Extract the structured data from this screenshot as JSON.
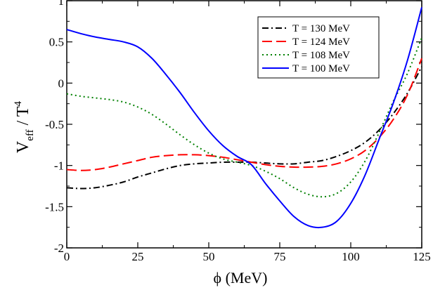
{
  "chart_data": {
    "type": "line",
    "xlabel": "ϕ (MeV)",
    "ylabel": {
      "base": "V",
      "sub": "eff",
      "sep": " / T",
      "sup": "4"
    },
    "xlim": [
      0,
      125
    ],
    "ylim": [
      -2,
      1
    ],
    "x_ticks": [
      0,
      25,
      50,
      75,
      100,
      125
    ],
    "y_ticks": [
      -2,
      -1.5,
      -1,
      -0.5,
      0,
      0.5,
      1
    ],
    "y_tick_labels": [
      "-2",
      "-1.5",
      "-1",
      "-0.5",
      "0",
      "0.5",
      "1"
    ],
    "grid": false,
    "legend_position": "top-right",
    "series": [
      {
        "name": "T = 130 MeV",
        "color": "#000000",
        "style": "dashdot",
        "x": [
          0,
          5,
          10,
          15,
          20,
          25,
          30,
          35,
          40,
          45,
          50,
          55,
          60,
          65,
          70,
          75,
          80,
          85,
          90,
          95,
          100,
          105,
          110,
          115,
          120,
          125
        ],
        "y": [
          -1.27,
          -1.28,
          -1.27,
          -1.24,
          -1.2,
          -1.14,
          -1.09,
          -1.04,
          -1.0,
          -0.98,
          -0.97,
          -0.96,
          -0.96,
          -0.96,
          -0.97,
          -0.98,
          -0.98,
          -0.96,
          -0.94,
          -0.89,
          -0.82,
          -0.72,
          -0.57,
          -0.37,
          -0.12,
          0.2
        ]
      },
      {
        "name": "T = 124 MeV",
        "color": "#ff0000",
        "style": "dashed",
        "x": [
          0,
          5,
          10,
          15,
          20,
          25,
          30,
          35,
          40,
          45,
          50,
          55,
          60,
          65,
          70,
          75,
          80,
          85,
          90,
          95,
          100,
          105,
          110,
          115,
          120,
          125
        ],
        "y": [
          -1.05,
          -1.06,
          -1.05,
          -1.02,
          -0.98,
          -0.94,
          -0.9,
          -0.88,
          -0.87,
          -0.87,
          -0.88,
          -0.9,
          -0.93,
          -0.96,
          -0.99,
          -1.01,
          -1.02,
          -1.02,
          -1.01,
          -0.98,
          -0.92,
          -0.82,
          -0.66,
          -0.44,
          -0.14,
          0.3
        ]
      },
      {
        "name": "T = 108 MeV",
        "color": "#008000",
        "style": "dotted",
        "x": [
          0,
          5,
          10,
          15,
          20,
          25,
          30,
          35,
          40,
          45,
          50,
          55,
          60,
          65,
          70,
          75,
          80,
          85,
          90,
          95,
          100,
          105,
          110,
          115,
          120,
          125
        ],
        "y": [
          -0.13,
          -0.16,
          -0.18,
          -0.2,
          -0.23,
          -0.29,
          -0.38,
          -0.5,
          -0.63,
          -0.75,
          -0.85,
          -0.92,
          -0.96,
          -1.0,
          -1.07,
          -1.16,
          -1.27,
          -1.35,
          -1.38,
          -1.34,
          -1.2,
          -0.95,
          -0.6,
          -0.22,
          0.12,
          0.55
        ]
      },
      {
        "name": "T = 100 MeV",
        "color": "#0000ff",
        "style": "solid",
        "x": [
          0,
          5,
          10,
          15,
          20,
          25,
          30,
          35,
          40,
          45,
          50,
          55,
          60,
          65,
          70,
          75,
          80,
          85,
          90,
          95,
          100,
          105,
          110,
          115,
          120,
          125
        ],
        "y": [
          0.65,
          0.6,
          0.56,
          0.53,
          0.5,
          0.44,
          0.3,
          0.1,
          -0.12,
          -0.36,
          -0.58,
          -0.76,
          -0.89,
          -0.99,
          -1.22,
          -1.43,
          -1.62,
          -1.73,
          -1.75,
          -1.68,
          -1.46,
          -1.12,
          -0.68,
          -0.24,
          0.28,
          0.92
        ]
      }
    ]
  }
}
